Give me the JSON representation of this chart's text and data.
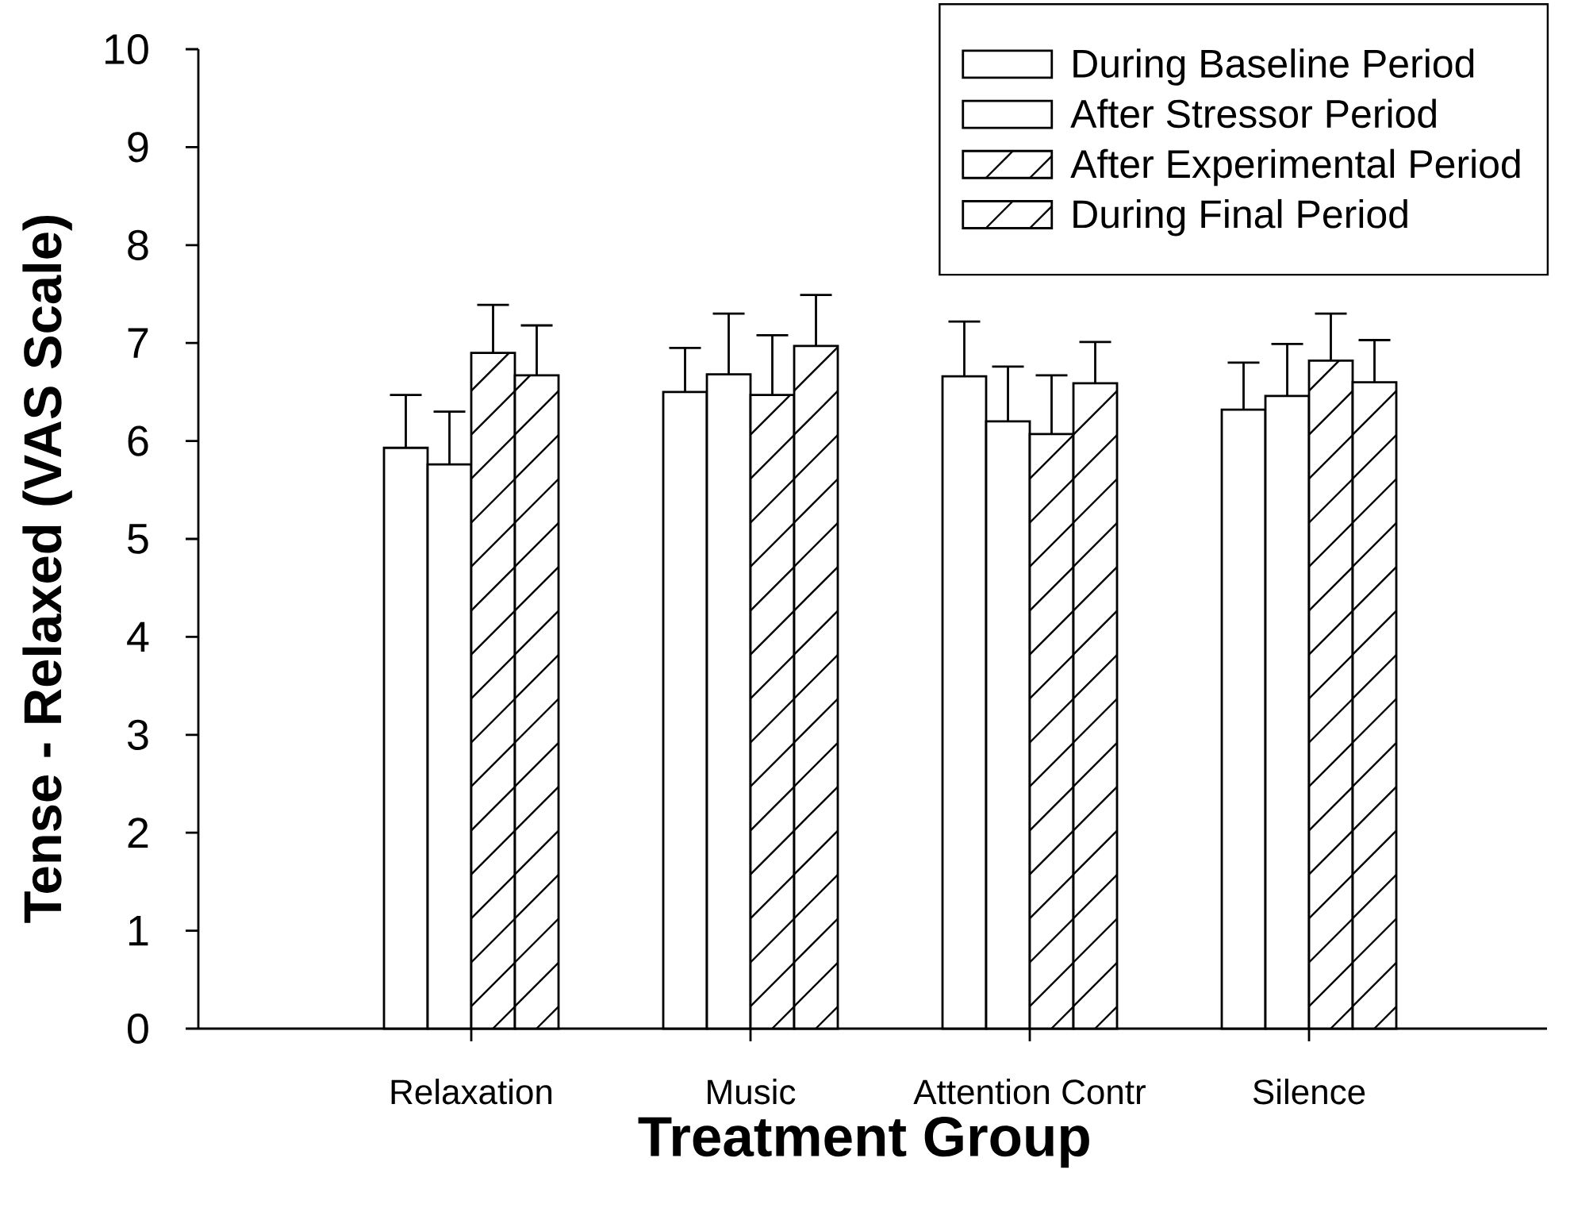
{
  "chart_data": {
    "type": "bar",
    "xlabel": "Treatment Group",
    "ylabel": "Tense - Relaxed (VAS Scale)",
    "categories": [
      "Relaxation",
      "Music",
      "Attention Contr",
      "Silence"
    ],
    "series": [
      {
        "name": "During Baseline Period",
        "color": "#ffffff",
        "values": [
          5.93,
          6.5,
          6.66,
          6.32
        ],
        "errors": [
          [
            5.93,
            6.47
          ],
          [
            6.5,
            6.95
          ],
          [
            6.66,
            7.22
          ],
          [
            6.32,
            6.8
          ]
        ]
      },
      {
        "name": "After Stressor Period",
        "color": "#ffffff",
        "values": [
          5.76,
          6.68,
          6.2,
          6.46
        ],
        "errors": [
          [
            5.76,
            6.3
          ],
          [
            6.68,
            7.3
          ],
          [
            6.2,
            6.76
          ],
          [
            6.46,
            6.99
          ]
        ]
      },
      {
        "name": "After Experimental Period",
        "color": "#ffffff",
        "values": [
          6.9,
          6.47,
          6.07,
          6.82
        ],
        "errors": [
          [
            6.9,
            7.39
          ],
          [
            6.47,
            7.08
          ],
          [
            6.07,
            6.67
          ],
          [
            6.82,
            7.3
          ]
        ]
      },
      {
        "name": "During Final Period",
        "color": "#ffffff",
        "values": [
          6.67,
          6.97,
          6.59,
          6.6
        ],
        "errors": [
          [
            6.67,
            7.18
          ],
          [
            6.97,
            7.49
          ],
          [
            6.59,
            7.01
          ],
          [
            6.6,
            7.03
          ]
        ]
      }
    ],
    "ylim": [
      0,
      10
    ],
    "yticks": [
      0,
      1,
      2,
      3,
      4,
      5,
      6,
      7,
      8,
      9,
      10
    ],
    "legend": "top right"
  }
}
